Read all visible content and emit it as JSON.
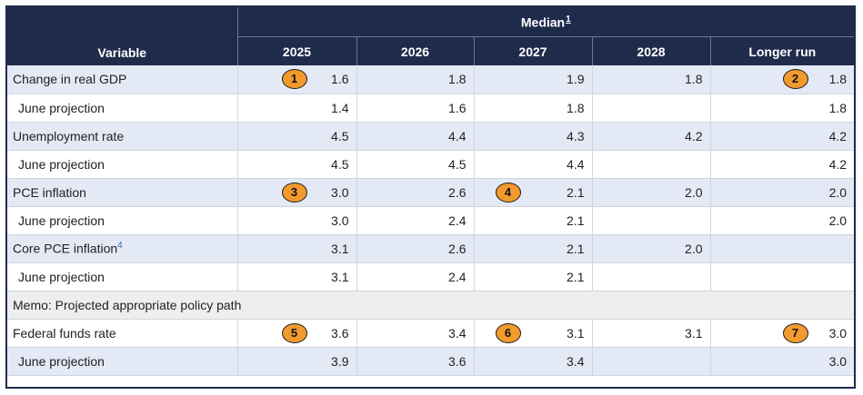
{
  "header": {
    "variable_label": "Variable",
    "median_label": "Median",
    "median_note": "1",
    "columns": [
      "2025",
      "2026",
      "2027",
      "2028",
      "Longer run"
    ]
  },
  "rows": [
    {
      "label": "Change in real GDP",
      "note": "",
      "values": [
        "1.6",
        "1.8",
        "1.9",
        "1.8",
        "1.8"
      ]
    },
    {
      "label": "June projection",
      "values": [
        "1.4",
        "1.6",
        "1.8",
        "",
        "1.8"
      ]
    },
    {
      "label": "Unemployment rate",
      "values": [
        "4.5",
        "4.4",
        "4.3",
        "4.2",
        "4.2"
      ]
    },
    {
      "label": "June projection",
      "values": [
        "4.5",
        "4.5",
        "4.4",
        "",
        "4.2"
      ]
    },
    {
      "label": "PCE inflation",
      "values": [
        "3.0",
        "2.6",
        "2.1",
        "2.0",
        "2.0"
      ]
    },
    {
      "label": "June projection",
      "values": [
        "3.0",
        "2.4",
        "2.1",
        "",
        "2.0"
      ]
    },
    {
      "label": "Core PCE inflation",
      "note": "4",
      "values": [
        "3.1",
        "2.6",
        "2.1",
        "2.0",
        ""
      ]
    },
    {
      "label": "June projection",
      "values": [
        "3.1",
        "2.4",
        "2.1",
        "",
        ""
      ]
    },
    {
      "label": "Memo: Projected appropriate policy path"
    },
    {
      "label": "Federal funds rate",
      "values": [
        "3.6",
        "3.4",
        "3.1",
        "3.1",
        "3.0"
      ]
    },
    {
      "label": "June projection",
      "values": [
        "3.9",
        "3.6",
        "3.4",
        "",
        "3.0"
      ]
    }
  ],
  "badges": [
    "1",
    "2",
    "3",
    "4",
    "5",
    "6",
    "7"
  ],
  "colors": {
    "header_bg": "#1f2b4b",
    "row_shade": "#e4eaf5",
    "memo_bg": "#eeeeee",
    "badge": "#f29a2e"
  }
}
